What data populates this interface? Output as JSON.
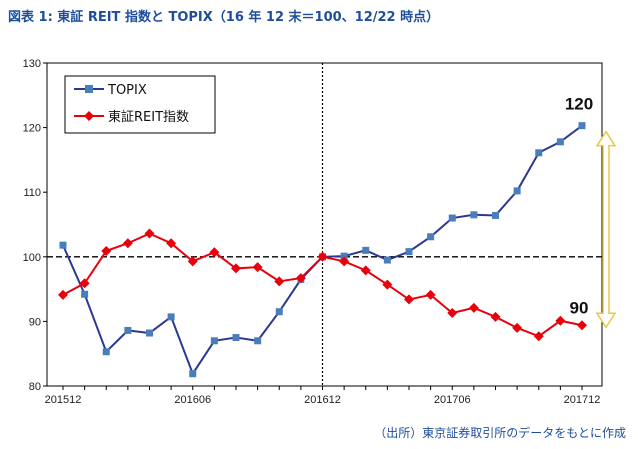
{
  "title": "図表 1: 東証 REIT 指数と TOPIX（16 年 12 末＝100、12/22 時点）",
  "source": "（出所）東京証券取引所のデータをもとに作成",
  "colors": {
    "topix": "#2b3990",
    "topix_marker": "#4a7ebb",
    "reit": "#e8000b",
    "arrow": "#e8c84a",
    "text_accent": "#1f4e9c"
  },
  "chart_data": {
    "type": "line",
    "ylim": [
      80,
      130
    ],
    "yticks": [
      80,
      90,
      100,
      110,
      120,
      130
    ],
    "x_tick_labels": [
      {
        "index": 0,
        "label": "201512"
      },
      {
        "index": 6,
        "label": "201606"
      },
      {
        "index": 12,
        "label": "201612"
      },
      {
        "index": 18,
        "label": "201706"
      },
      {
        "index": 24,
        "label": "201712"
      }
    ],
    "series": [
      {
        "name": "TOPIX",
        "marker": "square",
        "values": [
          101.8,
          94.2,
          85.3,
          88.6,
          88.2,
          90.7,
          81.9,
          87.0,
          87.5,
          87.0,
          91.5,
          96.5,
          100.0,
          100.1,
          101.0,
          99.5,
          100.8,
          103.1,
          106.0,
          106.5,
          106.4,
          110.2,
          116.1,
          117.8,
          120.3
        ]
      },
      {
        "name": "東証REIT指数",
        "marker": "diamond",
        "values": [
          94.1,
          95.9,
          100.9,
          102.1,
          103.6,
          102.1,
          99.3,
          100.7,
          98.2,
          98.4,
          96.2,
          96.7,
          100.0,
          99.3,
          97.9,
          95.7,
          93.4,
          94.1,
          91.3,
          92.1,
          90.7,
          89.0,
          87.7,
          90.1,
          89.4
        ]
      }
    ],
    "reference_line": 100,
    "annotations": [
      "120",
      "90"
    ]
  }
}
